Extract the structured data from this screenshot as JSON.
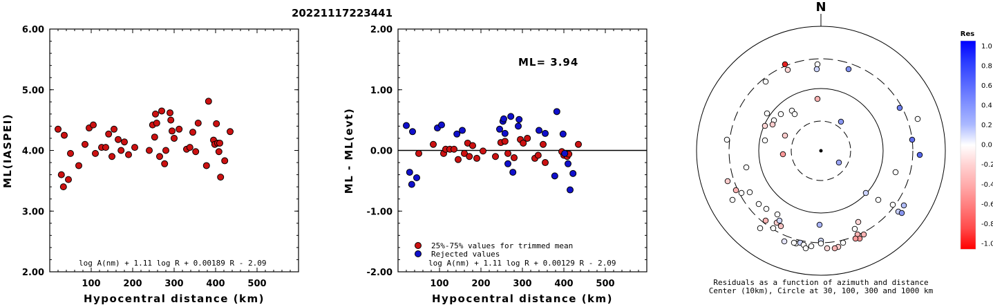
{
  "title": "20221117223441",
  "chart_data": [
    {
      "type": "scatter",
      "name": "left",
      "ylabel": "ML(IASPEI)",
      "xlabel": "Hypocentral distance (km)",
      "xlim": [
        0,
        600
      ],
      "ylim": [
        2.0,
        6.0
      ],
      "xticks": [
        100,
        200,
        300,
        400,
        500
      ],
      "yticks": [
        "2.00",
        "3.00",
        "4.00",
        "5.00",
        "6.00"
      ],
      "formula": "log A(nm) + 1.11 log R + 0.00189 R - 2.09",
      "color": "#cc1111",
      "points": [
        [
          20,
          4.35
        ],
        [
          28,
          3.6
        ],
        [
          33,
          3.4
        ],
        [
          35,
          4.25
        ],
        [
          45,
          3.52
        ],
        [
          50,
          3.95
        ],
        [
          70,
          3.75
        ],
        [
          85,
          4.1
        ],
        [
          95,
          4.37
        ],
        [
          105,
          4.42
        ],
        [
          110,
          3.95
        ],
        [
          125,
          4.05
        ],
        [
          135,
          4.05
        ],
        [
          142,
          4.27
        ],
        [
          150,
          3.9
        ],
        [
          155,
          4.35
        ],
        [
          165,
          4.18
        ],
        [
          172,
          4.0
        ],
        [
          180,
          4.14
        ],
        [
          190,
          3.93
        ],
        [
          205,
          4.05
        ],
        [
          240,
          4.0
        ],
        [
          248,
          4.42
        ],
        [
          253,
          4.22
        ],
        [
          255,
          4.6
        ],
        [
          258,
          4.45
        ],
        [
          265,
          3.9
        ],
        [
          270,
          4.65
        ],
        [
          277,
          3.78
        ],
        [
          280,
          4.0
        ],
        [
          290,
          4.62
        ],
        [
          292,
          4.5
        ],
        [
          295,
          4.32
        ],
        [
          300,
          4.2
        ],
        [
          312,
          4.35
        ],
        [
          330,
          4.02
        ],
        [
          338,
          4.05
        ],
        [
          345,
          4.3
        ],
        [
          352,
          3.98
        ],
        [
          358,
          4.45
        ],
        [
          378,
          3.75
        ],
        [
          383,
          4.81
        ],
        [
          395,
          4.17
        ],
        [
          398,
          4.1
        ],
        [
          402,
          4.44
        ],
        [
          405,
          4.12
        ],
        [
          408,
          3.98
        ],
        [
          410,
          4.12
        ],
        [
          412,
          3.56
        ],
        [
          422,
          3.83
        ],
        [
          435,
          4.31
        ]
      ]
    },
    {
      "type": "scatter",
      "name": "middle",
      "ylabel": "ML - ML(evt)",
      "xlabel": "Hypocentral distance (km)",
      "xlim": [
        0,
        600
      ],
      "ylim": [
        -2.0,
        2.0
      ],
      "xticks": [
        100,
        200,
        300,
        400,
        500
      ],
      "yticks": [
        "-2.00",
        "-1.00",
        "0.00",
        "1.00",
        "2.00"
      ],
      "ml_label": "ML= 3.94",
      "legend": [
        {
          "label": "25%-75% values for trimmed mean",
          "color": "#cc1111"
        },
        {
          "label": "Rejected values",
          "color": "#1010cc"
        }
      ],
      "formula": "log A(nm) + 1.11 log R + 0.00129 R - 2.09",
      "red_points": [
        [
          50,
          -0.05
        ],
        [
          85,
          0.1
        ],
        [
          110,
          -0.05
        ],
        [
          115,
          0.02
        ],
        [
          125,
          0.02
        ],
        [
          135,
          0.02
        ],
        [
          145,
          -0.15
        ],
        [
          160,
          -0.05
        ],
        [
          168,
          0.12
        ],
        [
          172,
          -0.1
        ],
        [
          180,
          0.08
        ],
        [
          190,
          -0.13
        ],
        [
          205,
          -0.01
        ],
        [
          235,
          -0.1
        ],
        [
          248,
          0.13
        ],
        [
          258,
          0.15
        ],
        [
          265,
          -0.05
        ],
        [
          280,
          -0.12
        ],
        [
          295,
          0.18
        ],
        [
          302,
          0.12
        ],
        [
          312,
          0.2
        ],
        [
          330,
          -0.13
        ],
        [
          338,
          -0.08
        ],
        [
          350,
          0.1
        ],
        [
          355,
          -0.2
        ],
        [
          395,
          -0.02
        ],
        [
          400,
          -0.08
        ],
        [
          403,
          -0.05
        ],
        [
          408,
          -0.1
        ],
        [
          412,
          -0.06
        ],
        [
          435,
          0.1
        ]
      ],
      "blue_points": [
        [
          20,
          0.41
        ],
        [
          28,
          -0.36
        ],
        [
          33,
          -0.56
        ],
        [
          35,
          0.31
        ],
        [
          45,
          -0.45
        ],
        [
          95,
          0.37
        ],
        [
          105,
          0.42
        ],
        [
          142,
          0.27
        ],
        [
          155,
          0.33
        ],
        [
          245,
          0.35
        ],
        [
          253,
          0.48
        ],
        [
          255,
          0.52
        ],
        [
          258,
          0.28
        ],
        [
          265,
          -0.22
        ],
        [
          272,
          0.56
        ],
        [
          277,
          -0.36
        ],
        [
          290,
          0.4
        ],
        [
          292,
          0.51
        ],
        [
          340,
          0.33
        ],
        [
          355,
          0.28
        ],
        [
          378,
          -0.42
        ],
        [
          383,
          0.64
        ],
        [
          398,
          0.27
        ],
        [
          402,
          -0.05
        ],
        [
          410,
          -0.22
        ],
        [
          415,
          -0.65
        ],
        [
          422,
          -0.38
        ]
      ]
    }
  ],
  "polar": {
    "north": "N",
    "caption1": "Residuals as a function of azimuth and distance",
    "caption2": "Center (10km), Circle at 30, 100, 300 and 1000 km",
    "stations": [
      [
        -52,
        -125,
        "#e52020"
      ],
      [
        -48,
        -117,
        "#ffd6d6"
      ],
      [
        -5,
        -125,
        "#ffffff"
      ],
      [
        -6,
        -118,
        "#ccd4ff"
      ],
      [
        40,
        -118,
        "#8090f0"
      ],
      [
        -80,
        -100,
        "#ffffff"
      ],
      [
        -58,
        -53,
        "#ffffff"
      ],
      [
        -42,
        -58,
        "#ffffff"
      ],
      [
        -38,
        -53,
        "#ffffff"
      ],
      [
        -5,
        -75,
        "#ffb3b3"
      ],
      [
        29,
        -42,
        "#8896f0"
      ],
      [
        -68,
        -44,
        "#ffffff"
      ],
      [
        -78,
        -54,
        "#ffffff"
      ],
      [
        -81,
        -36,
        "#ffd6d6"
      ],
      [
        -70,
        -38,
        "#ffcccc"
      ],
      [
        -81,
        -15,
        "#ffffff"
      ],
      [
        -52,
        -22,
        "#ffcccc"
      ],
      [
        -55,
        5,
        "#ff9999"
      ],
      [
        114,
        -62,
        "#6e80ee"
      ],
      [
        140,
        -46,
        "#ffffff"
      ],
      [
        132,
        -16,
        "#6270ea"
      ],
      [
        143,
        6,
        "#5566ea"
      ],
      [
        26,
        17,
        "#9aa4f4"
      ],
      [
        -136,
        -16,
        "#ffffff"
      ],
      [
        -108,
        24,
        "#ffffff"
      ],
      [
        -135,
        44,
        "#ffcccc"
      ],
      [
        -123,
        57,
        "#ffb3b3"
      ],
      [
        -115,
        61,
        "#ffffff"
      ],
      [
        -103,
        60,
        "#ffffff"
      ],
      [
        -128,
        71,
        "#ffffff"
      ],
      [
        -90,
        77,
        "#ffffff"
      ],
      [
        -79,
        84,
        "#ffffff"
      ],
      [
        -63,
        92,
        "#ffffff"
      ],
      [
        -64,
        104,
        "#ffcccc"
      ],
      [
        -60,
        101,
        "#d0d8ff"
      ],
      [
        -58,
        109,
        "#f5c0c0"
      ],
      [
        -69,
        112,
        "#ffffff"
      ],
      [
        -80,
        101,
        "#ffb3b3"
      ],
      [
        -88,
        112,
        "#ffffff"
      ],
      [
        -53,
        131,
        "#e6e6ff"
      ],
      [
        -36,
        134,
        "#ffffff"
      ],
      [
        -39,
        133,
        "#ffffff"
      ],
      [
        -30,
        133,
        "#ccd4ff"
      ],
      [
        -25,
        136,
        "#ffffff"
      ],
      [
        -14,
        138,
        "#ffffff"
      ],
      [
        -22,
        141,
        "#ffffff"
      ],
      [
        0,
        130,
        "#d0d8ff"
      ],
      [
        -2,
        107,
        "#aab4f8"
      ],
      [
        0,
        134,
        "#ffffff"
      ],
      [
        9,
        141,
        "#ffd6d6"
      ],
      [
        25,
        139,
        "#ffcccc"
      ],
      [
        20,
        141,
        "#ffb3b3"
      ],
      [
        32,
        133,
        "#ffffff"
      ],
      [
        53,
        121,
        "#ffb3b3"
      ],
      [
        56,
        127,
        "#ff9999"
      ],
      [
        50,
        127,
        "#ff9999"
      ],
      [
        62,
        121,
        "#ffb3b3"
      ],
      [
        49,
        113,
        "#ffffff"
      ],
      [
        54,
        103,
        "#ffd6d6"
      ],
      [
        83,
        71,
        "#ffffff"
      ],
      [
        65,
        61,
        "#ccd4ff"
      ],
      [
        104,
        78,
        "#ffffff"
      ],
      [
        112,
        88,
        "#c8d0ff"
      ],
      [
        117,
        90,
        "#8896f0"
      ],
      [
        120,
        79,
        "#b0bcf8"
      ],
      [
        108,
        31,
        "#ffffff"
      ]
    ]
  },
  "colorbar": {
    "title": "Res",
    "labels": [
      "1.0",
      "0.8",
      "0.6",
      "0.4",
      "0.2",
      "0.0",
      "-0.2",
      "-0.4",
      "-0.6",
      "-0.8",
      "-1.0"
    ],
    "colors": [
      "#0000ff",
      "#2a3cff",
      "#5566ff",
      "#8090ff",
      "#aab8ff",
      "#ffffff",
      "#ffd0d0",
      "#ffa8a8",
      "#ff7a7a",
      "#ff4a4a",
      "#ff0000"
    ]
  }
}
